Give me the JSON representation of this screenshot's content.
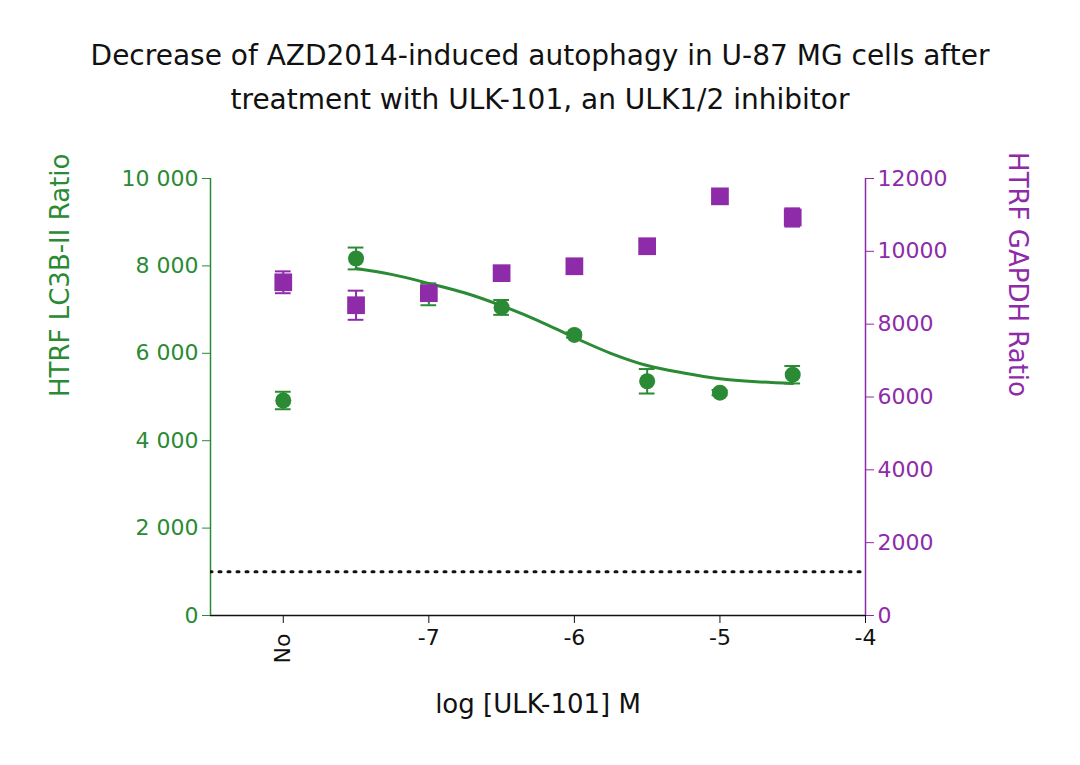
{
  "chart_data": {
    "type": "scatter",
    "title": "Decrease of AZD2014-induced autophagy in U-87 MG cells after treatment with ULK-101, an ULK1/2 inhibitor",
    "x_label": "log [ULK-101] M",
    "y_label": "HTRF LC3B-II Ratio",
    "y2_label": "HTRF GAPDH Ratio",
    "x": [
      -8,
      -7.5,
      -7,
      -6.5,
      -6,
      -5.5,
      -5,
      -4.5
    ],
    "xlim": [
      -8.5,
      -4
    ],
    "xticks": [
      {
        "value": -8,
        "label": "No"
      },
      -7,
      -6,
      -5,
      -4
    ],
    "ylim": [
      0,
      10000
    ],
    "yticks": [
      {
        "value": 0,
        "label": "0"
      },
      {
        "value": 2000,
        "label": "2 000"
      },
      {
        "value": 4000,
        "label": "4 000"
      },
      {
        "value": 6000,
        "label": "6 000"
      },
      {
        "value": 8000,
        "label": "8 000"
      },
      {
        "value": 10000,
        "label": "10 000"
      }
    ],
    "y2lim": [
      0,
      12000
    ],
    "y2ticks": [
      0,
      2000,
      4000,
      6000,
      8000,
      10000,
      12000
    ],
    "baseline": 1000,
    "series": [
      {
        "color": "#2b8a34",
        "marker": "circle",
        "axis": "y",
        "values": [
          4920,
          8170,
          7350,
          7050,
          6420,
          5360,
          5100,
          5510
        ],
        "errors": [
          200,
          250,
          250,
          170,
          60,
          280,
          60,
          200
        ]
      },
      {
        "color": "#8e2ba8",
        "marker": "square",
        "axis": "y2",
        "values": [
          9150,
          8520,
          8850,
          9400,
          9590,
          10140,
          11510,
          10930
        ],
        "errors": [
          300,
          400,
          200,
          80,
          80,
          150,
          80,
          250
        ]
      }
    ],
    "fit": {
      "type": "line",
      "color": "#2b8a34",
      "axis": "y",
      "x": [
        -7.5,
        -7.25,
        -7,
        -6.75,
        -6.5,
        -6.25,
        -6,
        -5.75,
        -5.5,
        -5.25,
        -5,
        -4.75,
        -4.5
      ],
      "values": [
        7940,
        7800,
        7600,
        7380,
        7090,
        6750,
        6360,
        6000,
        5720,
        5550,
        5420,
        5350,
        5310
      ]
    }
  }
}
